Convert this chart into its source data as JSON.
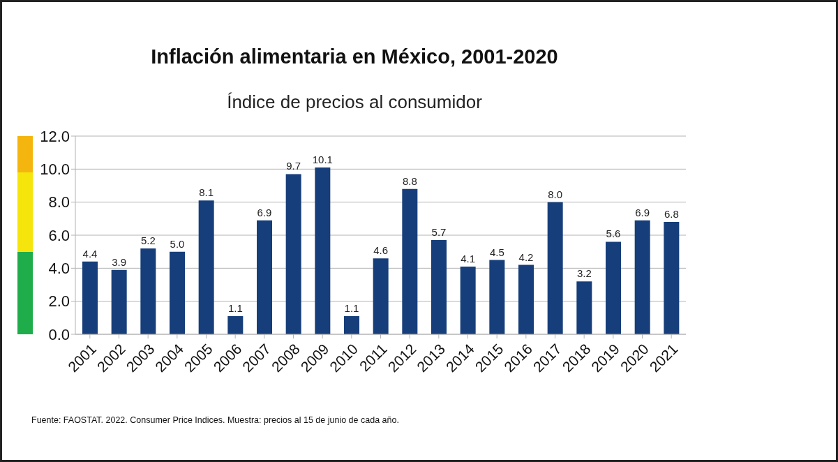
{
  "chart_data": {
    "type": "bar",
    "title": "Inflación alimentaria en México, 2001-2020",
    "subtitle": "Índice de precios al consumidor",
    "categories": [
      "2001",
      "2002",
      "2003",
      "2004",
      "2005",
      "2006",
      "2007",
      "2008",
      "2009",
      "2010",
      "2011",
      "2012",
      "2013",
      "2014",
      "2015",
      "2016",
      "2017",
      "2018",
      "2019",
      "2020",
      "2021"
    ],
    "values": [
      4.4,
      3.9,
      5.2,
      5.0,
      8.1,
      1.1,
      6.9,
      9.7,
      10.1,
      1.1,
      4.6,
      8.8,
      5.7,
      4.1,
      4.5,
      4.2,
      8.0,
      3.2,
      5.6,
      6.9,
      6.8
    ],
    "value_labels": [
      "4.4",
      "3.9",
      "5.2",
      "5.0",
      "8.1",
      "1.1",
      "6.9",
      "9.7",
      "10.1",
      "1.1",
      "4.6",
      "8.8",
      "5.7",
      "4.1",
      "4.5",
      "4.2",
      "8.0",
      "3.2",
      "5.6",
      "6.9",
      "6.8"
    ],
    "color": "#163e7a",
    "ylim": [
      0,
      12
    ],
    "yticks": [
      {
        "value": 0,
        "label": "0.0"
      },
      {
        "value": 2,
        "label": "2.0"
      },
      {
        "value": 4,
        "label": "4.0"
      },
      {
        "value": 6,
        "label": "6.0"
      },
      {
        "value": 8,
        "label": "8.0"
      },
      {
        "value": 10,
        "label": "10.0"
      },
      {
        "value": 12,
        "label": "12.0"
      }
    ],
    "grid": "y",
    "legend": false,
    "annotations": [
      "Fuente: FAOSTAT. 2022. Consumer Price Indices. Muestra: precios al 15 de junio de cada año."
    ]
  }
}
